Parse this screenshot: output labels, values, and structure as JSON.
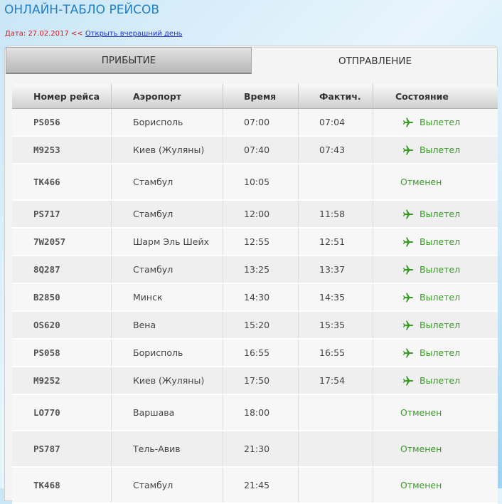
{
  "header": {
    "title": "ОНЛАЙН-ТАБЛО РЕЙСОВ",
    "date_label": "Дата: 27.02.2017 <<",
    "prev_day_link": "Открыть вчерашний день"
  },
  "tabs": [
    {
      "label": "ПРИБЫТИЕ",
      "active": false
    },
    {
      "label": "ОТПРАВЛЕНИЕ",
      "active": true
    }
  ],
  "table": {
    "columns": [
      "Номер рейса",
      "Аэропорт",
      "Время",
      "Фактич.",
      "Состояние"
    ],
    "rows": [
      {
        "flight": "PS056",
        "airport": "Борисполь",
        "time": "07:00",
        "actual": "07:04",
        "status": "Вылетел",
        "status_icon": "plane-icon"
      },
      {
        "flight": "M9253",
        "airport": "Киев (Жуляны)",
        "time": "07:40",
        "actual": "07:43",
        "status": "Вылетел",
        "status_icon": "plane-icon"
      },
      {
        "flight": "TK466",
        "airport": "Стамбул",
        "time": "10:05",
        "actual": "",
        "status": "Отменен",
        "status_icon": ""
      },
      {
        "flight": "PS717",
        "airport": "Стамбул",
        "time": "12:00",
        "actual": "11:58",
        "status": "Вылетел",
        "status_icon": "plane-icon"
      },
      {
        "flight": "7W2057",
        "airport": "Шарм Эль Шейх",
        "time": "12:55",
        "actual": "12:51",
        "status": "Вылетел",
        "status_icon": "plane-icon"
      },
      {
        "flight": "8Q287",
        "airport": "Стамбул",
        "time": "13:25",
        "actual": "13:37",
        "status": "Вылетел",
        "status_icon": "plane-icon"
      },
      {
        "flight": "B2850",
        "airport": "Минск",
        "time": "14:30",
        "actual": "14:35",
        "status": "Вылетел",
        "status_icon": "plane-icon"
      },
      {
        "flight": "OS620",
        "airport": "Вена",
        "time": "15:20",
        "actual": "15:35",
        "status": "Вылетел",
        "status_icon": "plane-icon"
      },
      {
        "flight": "PS058",
        "airport": "Борисполь",
        "time": "16:55",
        "actual": "16:55",
        "status": "Вылетел",
        "status_icon": "plane-icon"
      },
      {
        "flight": "M9252",
        "airport": "Киев (Жуляны)",
        "time": "17:50",
        "actual": "17:54",
        "status": "Вылетел",
        "status_icon": "plane-icon"
      },
      {
        "flight": "LO770",
        "airport": "Варшава",
        "time": "18:00",
        "actual": "",
        "status": "Отменен",
        "status_icon": ""
      },
      {
        "flight": "PS787",
        "airport": "Тель-Авив",
        "time": "21:30",
        "actual": "",
        "status": "Отменен",
        "status_icon": ""
      },
      {
        "flight": "TK468",
        "airport": "Стамбул",
        "time": "21:45",
        "actual": "",
        "status": "Отменен",
        "status_icon": ""
      }
    ]
  },
  "colors": {
    "title": "#1f7fc9",
    "status_green": "#3a9a28",
    "date_red": "#cc1a1a",
    "link_blue": "#1a2fd0"
  }
}
